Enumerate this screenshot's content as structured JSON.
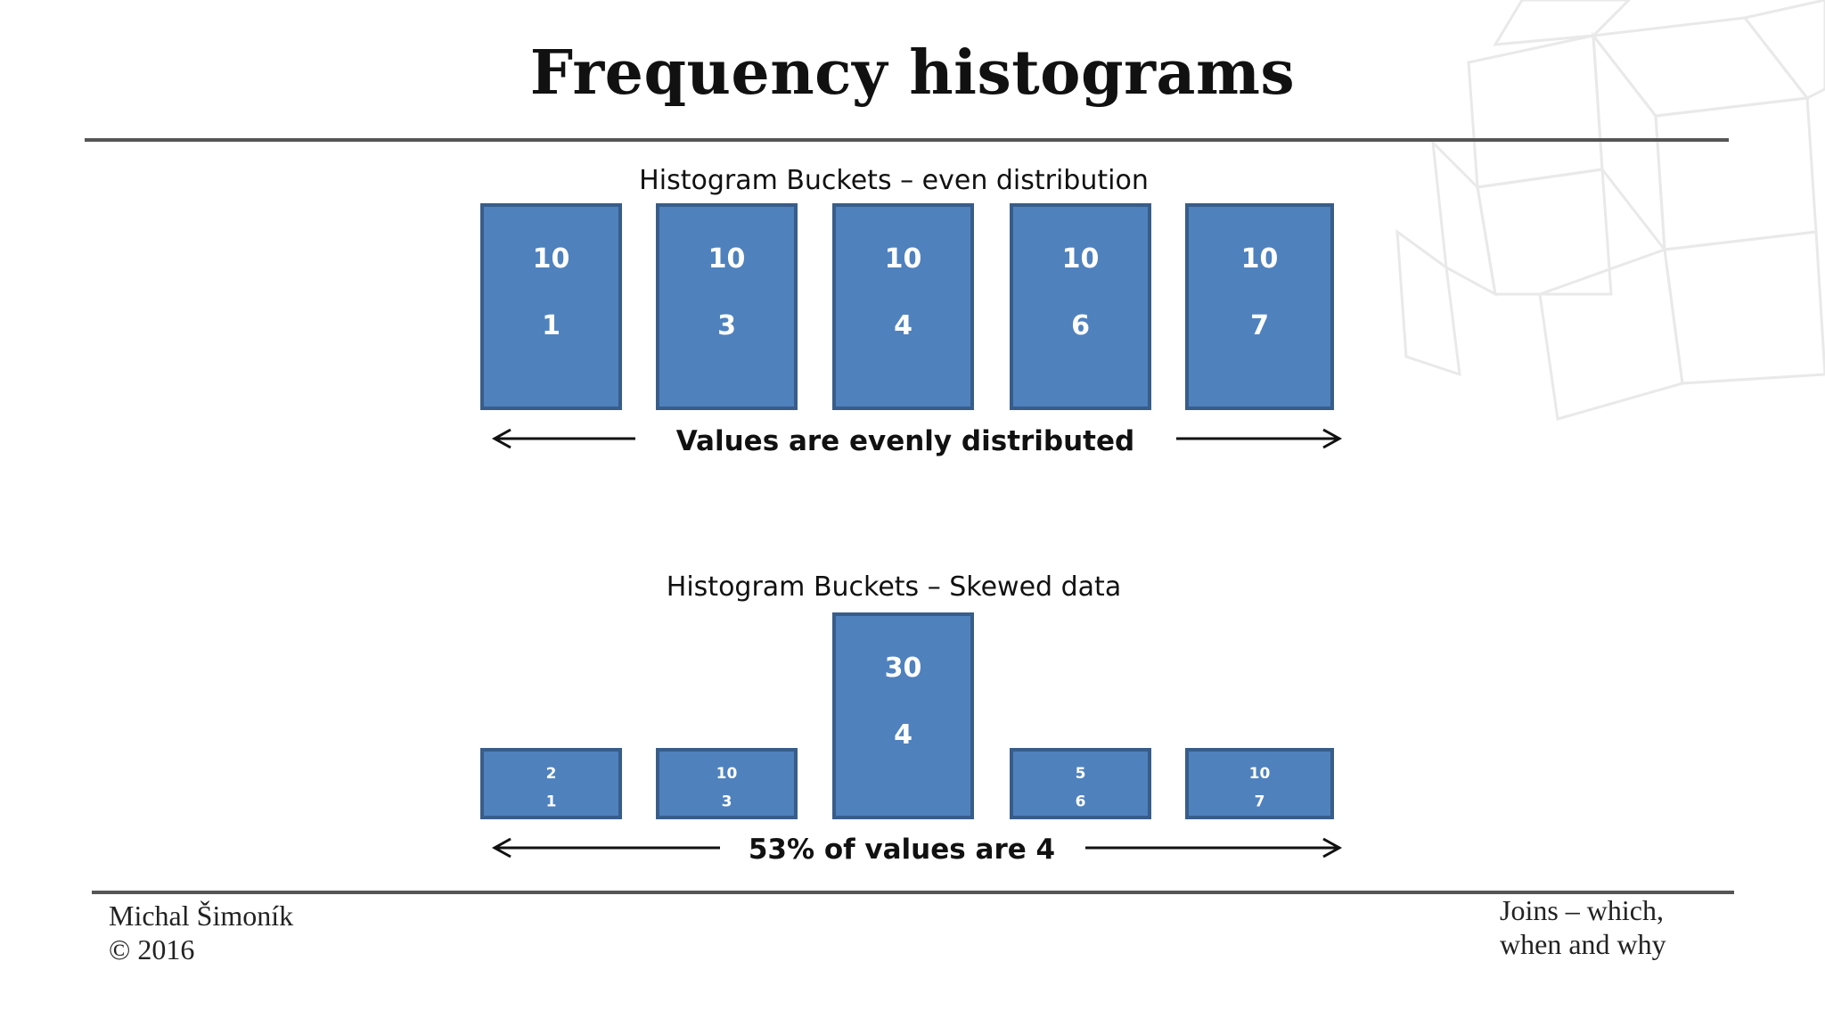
{
  "slide": {
    "title": "Frequency histograms",
    "author": "Michal Šimoník",
    "copyright": "© 2016",
    "topic_line1": "Joins – which,",
    "topic_line2": "when and why"
  },
  "colors": {
    "bar_fill": "#4f81bd",
    "bar_border": "#385d8a",
    "label": "#ffffff",
    "rule": "#555555"
  },
  "chart_data": [
    {
      "type": "bar",
      "title": "Histogram Buckets – even distribution",
      "caption": "Values are evenly distributed",
      "categories": [
        "1",
        "3",
        "4",
        "6",
        "7"
      ],
      "values": [
        10,
        10,
        10,
        10,
        10
      ],
      "ylim": [
        0,
        30
      ],
      "grid": false
    },
    {
      "type": "bar",
      "title": "Histogram Buckets – Skewed data",
      "caption": "53% of values are 4",
      "categories": [
        "1",
        "3",
        "4",
        "6",
        "7"
      ],
      "values": [
        2,
        10,
        30,
        5,
        10
      ],
      "ylim": [
        0,
        30
      ],
      "grid": false
    }
  ]
}
